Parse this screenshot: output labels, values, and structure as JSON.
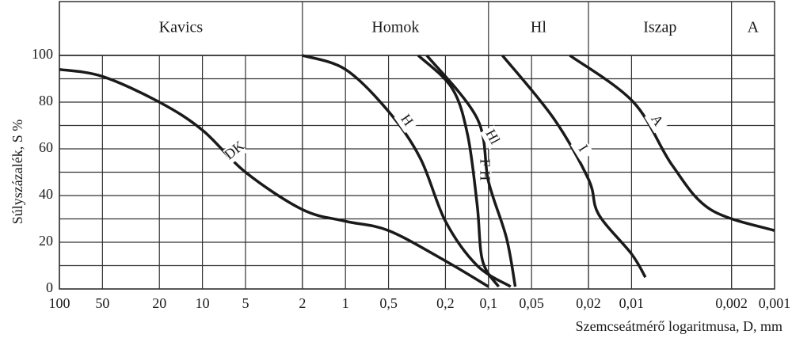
{
  "chart_data": {
    "type": "line",
    "x_label": "Szemcseátmérő logaritmusa, D, mm",
    "y_label": "Súlyszázalék, S %",
    "log_x": true,
    "xlim": [
      100,
      0.001
    ],
    "ylim": [
      0,
      100
    ],
    "xticks": [
      100,
      50,
      20,
      10,
      5,
      2,
      1,
      {
        "value": 0.5,
        "label": "0,5"
      },
      {
        "value": 0.2,
        "label": "0,2"
      },
      {
        "value": 0.1,
        "label": "0,1"
      },
      {
        "value": 0.05,
        "label": "0,05"
      },
      {
        "value": 0.02,
        "label": "0,02"
      },
      {
        "value": 0.01,
        "label": "0,01"
      },
      {
        "value": 0.002,
        "label": "0,002"
      },
      {
        "value": 0.001,
        "label": "0,001"
      }
    ],
    "yticks": [
      0,
      20,
      40,
      60,
      80,
      100
    ],
    "y_minor_ticks": [
      10,
      30,
      50,
      70,
      90
    ],
    "grid": true,
    "zones": [
      {
        "label": "Kavics",
        "from": 100,
        "to": 2
      },
      {
        "label": "Homok",
        "from": 2,
        "to": 0.1
      },
      {
        "label": "Hl",
        "from": 0.1,
        "to": 0.02
      },
      {
        "label": "Iszap",
        "from": 0.02,
        "to": 0.002
      },
      {
        "label": "A",
        "from": 0.002,
        "to": 0.001
      }
    ],
    "series": [
      {
        "name": "DK",
        "color": "#1a1a1a",
        "x": [
          100,
          50,
          20,
          10,
          5,
          2,
          1,
          0.5,
          0.2,
          0.1
        ],
        "values": [
          94,
          91,
          80,
          68,
          50,
          34,
          29,
          25,
          12,
          1
        ]
      },
      {
        "name": "H",
        "color": "#1a1a1a",
        "x": [
          2,
          1,
          0.5,
          0.3,
          0.2,
          0.12,
          0.07
        ],
        "values": [
          100,
          94,
          76,
          56,
          29,
          10,
          1
        ]
      },
      {
        "name": "F H",
        "color": "#1a1a1a",
        "x": [
          0.31,
          0.18,
          0.14,
          0.12,
          0.11,
          0.085
        ],
        "values": [
          100,
          86,
          66,
          36,
          12,
          1
        ]
      },
      {
        "name": "Hl",
        "color": "#1a1a1a",
        "x": [
          0.27,
          0.12,
          0.1,
          0.075,
          0.065
        ],
        "values": [
          100,
          73,
          46,
          22,
          1
        ]
      },
      {
        "name": "I",
        "color": "#1a1a1a",
        "x": [
          0.08,
          0.035,
          0.02,
          0.017,
          0.01,
          0.008
        ],
        "values": [
          100,
          73,
          47,
          32,
          15,
          5
        ]
      },
      {
        "name": "A",
        "color": "#1a1a1a",
        "x": [
          0.027,
          0.0097,
          0.0052,
          0.0028,
          0.001
        ],
        "values": [
          100,
          80,
          53,
          34,
          25
        ]
      }
    ]
  }
}
